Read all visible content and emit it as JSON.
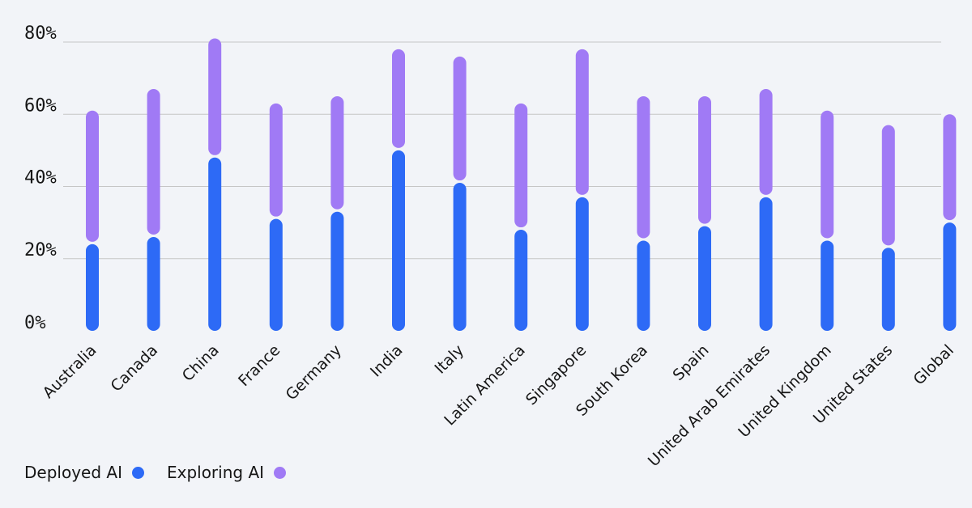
{
  "chart_data": {
    "type": "bar",
    "subtype": "stacked-range",
    "title": "",
    "xlabel": "",
    "ylabel": "",
    "ylim": [
      0,
      80
    ],
    "yticks": [
      0,
      20,
      40,
      60,
      80
    ],
    "ytick_labels": [
      "0%",
      "20%",
      "40%",
      "60%",
      "80%"
    ],
    "grid": true,
    "legend_placement": "bottom-left",
    "categories": [
      "Australia",
      "Canada",
      "China",
      "France",
      "Germany",
      "India",
      "Italy",
      "Latin America",
      "Singapore",
      "South Korea",
      "Spain",
      "United Arab Emirates",
      "United Kingdom",
      "United States",
      "Global"
    ],
    "series": [
      {
        "name": "Deployed AI",
        "color": "#2d6af6",
        "values": [
          24,
          26,
          48,
          31,
          33,
          50,
          41,
          28,
          37,
          25,
          29,
          37,
          25,
          23,
          30
        ]
      },
      {
        "name": "Exploring AI",
        "color": "#a07af5",
        "values": [
          37,
          41,
          33,
          32,
          32,
          28,
          35,
          35,
          41,
          40,
          36,
          30,
          36,
          34,
          30
        ]
      }
    ]
  }
}
